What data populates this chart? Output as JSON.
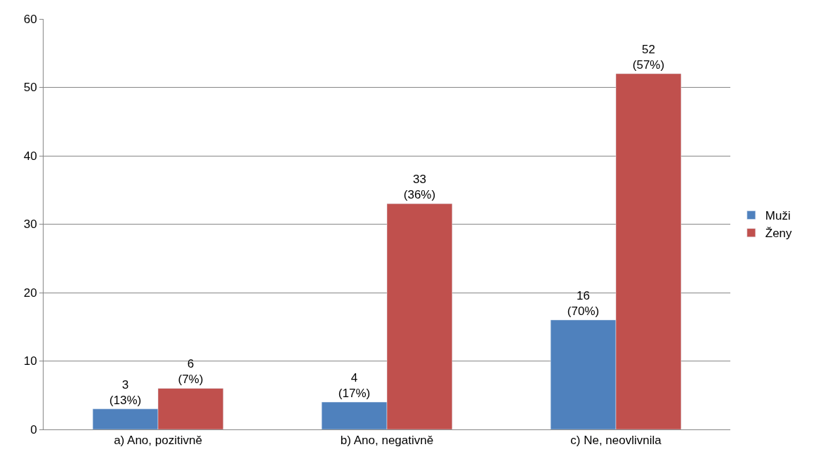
{
  "chart_data": {
    "type": "bar",
    "categories": [
      "a) Ano, pozitivně",
      "b) Ano, negativně",
      "c) Ne, neovlivnila"
    ],
    "series": [
      {
        "name": "Muži",
        "color": "#4f81bd",
        "values": [
          3,
          4,
          16
        ],
        "value_labels": [
          "3\n(13%)",
          "4\n(17%)",
          "16\n(70%)"
        ]
      },
      {
        "name": "Ženy",
        "color": "#c0504d",
        "values": [
          6,
          33,
          52
        ],
        "value_labels": [
          "6\n(7%)",
          "33\n(36%)",
          "52\n(57%)"
        ]
      }
    ],
    "ylim": [
      0,
      60
    ],
    "yticks": [
      0,
      10,
      20,
      30,
      40,
      50,
      60
    ],
    "grid": "y",
    "legend": "right"
  }
}
